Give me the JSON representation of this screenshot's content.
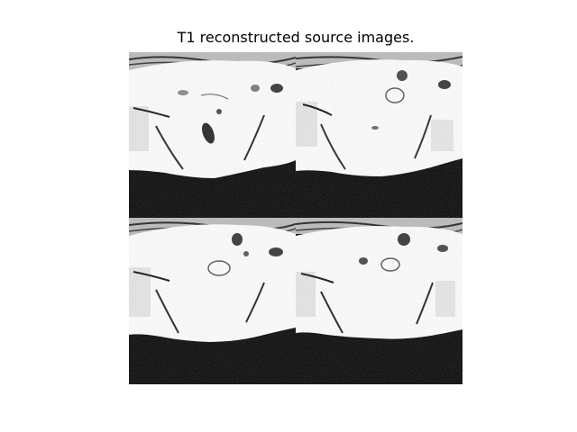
{
  "figure": {
    "title": "T1 reconstructed source images."
  },
  "panels": [
    {
      "index": 0
    },
    {
      "index": 1
    },
    {
      "index": 2
    },
    {
      "index": 3
    }
  ]
}
